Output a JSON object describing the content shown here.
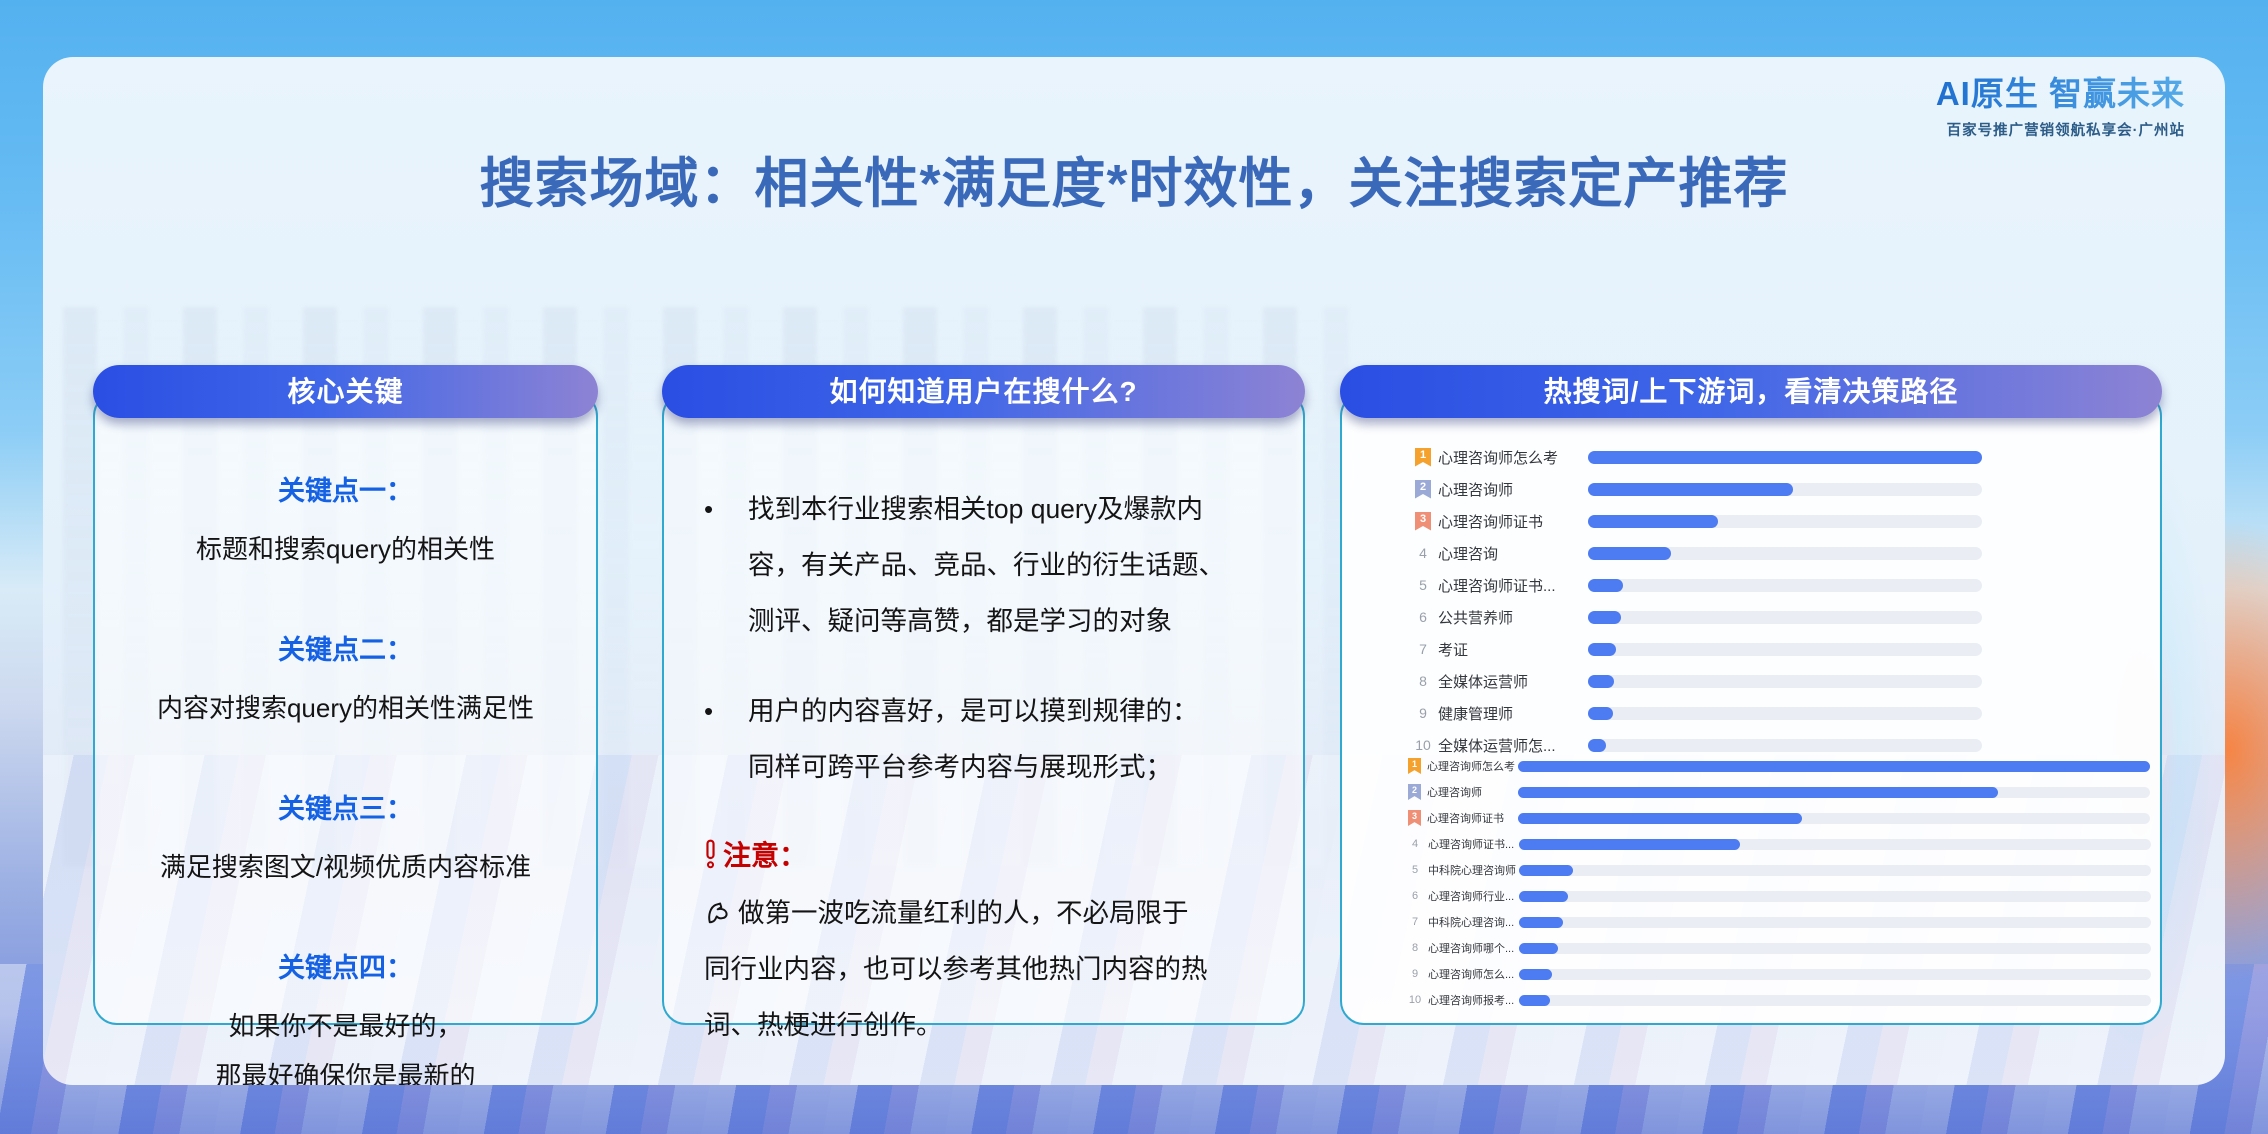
{
  "slide": {
    "title": "搜索场域：相关性*满足度*时效性，关注搜索定产推荐",
    "logo": {
      "title": "AI原生 智赢未来",
      "subtitle": "百家号推广营销领航私享会·广州站"
    }
  },
  "columns": {
    "core": {
      "header": "核心关键",
      "points": [
        {
          "label": "关键点一：",
          "text": "标题和搜索query的相关性"
        },
        {
          "label": "关键点二：",
          "text": "内容对搜索query的相关性满足性"
        },
        {
          "label": "关键点三：",
          "text": "满足搜索图文/视频优质内容标准"
        },
        {
          "label": "关键点四：",
          "text": "如果你不是最好的，\n那最好确保你是最新的"
        }
      ]
    },
    "how": {
      "header": "如何知道用户在搜什么?",
      "bullet_glyph": "•",
      "bullets": [
        {
          "text": "找到本行业搜索相关top query及爆款内\n容，有关产品、竞品、行业的衍生话题、\n测评、疑问等高赞，都是学习的对象"
        },
        {
          "text": "用户的内容喜好，是可以摸到规律的：\n同样可跨平台参考内容与展现形式；"
        }
      ],
      "note_label": "注意：",
      "note_text": "做第一波吃流量红利的人，不必局限于\n同行业内容，也可以参考其他热门内容的热\n词、热梗进行创作。"
    },
    "hot": {
      "header": "热搜词/上下游词，看清决策路径"
    }
  },
  "chart_data": [
    {
      "type": "bar",
      "position": "top",
      "orientation": "horizontal",
      "value_unit": "percent-of-longest-bar",
      "rows": [
        {
          "rank": "1",
          "label": "心理咨询师怎么考",
          "value": 100
        },
        {
          "rank": "2",
          "label": "心理咨询师",
          "value": 52
        },
        {
          "rank": "3",
          "label": "心理咨询师证书",
          "value": 33
        },
        {
          "rank": "4",
          "label": "心理咨询",
          "value": 21
        },
        {
          "rank": "5",
          "label": "心理咨询师证书...",
          "value": 9
        },
        {
          "rank": "6",
          "label": "公共营养师",
          "value": 8.5
        },
        {
          "rank": "7",
          "label": "考证",
          "value": 7
        },
        {
          "rank": "8",
          "label": "全媒体运营师",
          "value": 6.5
        },
        {
          "rank": "9",
          "label": "健康管理师",
          "value": 6.3
        },
        {
          "rank": "10",
          "label": "全媒体运营师怎...",
          "value": 4.5
        }
      ]
    },
    {
      "type": "bar",
      "position": "bottom",
      "orientation": "horizontal",
      "value_unit": "percent-of-longest-bar",
      "rows": [
        {
          "rank": "1",
          "label": "心理咨询师怎么考",
          "value": 100
        },
        {
          "rank": "2",
          "label": "心理咨询师",
          "value": 76
        },
        {
          "rank": "3",
          "label": "心理咨询师证书",
          "value": 45
        },
        {
          "rank": "4",
          "label": "心理咨询师证书...",
          "value": 35
        },
        {
          "rank": "5",
          "label": "中科院心理咨询师",
          "value": 8.5
        },
        {
          "rank": "6",
          "label": "心理咨询师行业...",
          "value": 7.8
        },
        {
          "rank": "7",
          "label": "中科院心理咨询...",
          "value": 7
        },
        {
          "rank": "8",
          "label": "心理咨询师哪个...",
          "value": 6.2
        },
        {
          "rank": "9",
          "label": "心理咨询师怎么...",
          "value": 5.2
        },
        {
          "rank": "10",
          "label": "心理咨询师报考...",
          "value": 4.9
        }
      ]
    }
  ],
  "colors": {
    "bar_blue": "#4c7bf2",
    "bar_track": "#eaeef4",
    "panel_border": "#2fa9cf",
    "pill_gradient_start": "#2a4ee3",
    "pill_gradient_end": "#8d83d4",
    "title_blue": "#3b69b9",
    "keypoint_blue": "#1461e4",
    "note_red": "#c40000",
    "rank1_badge": "#f5a12d",
    "rank2_badge": "#9aa9d6",
    "rank3_badge": "#ef8f76",
    "logo_blue": "#1e6fd0",
    "sky_blue": "#67bcf3"
  }
}
